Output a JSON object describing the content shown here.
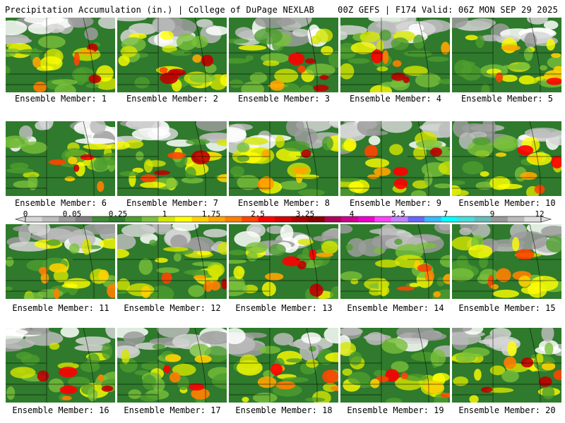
{
  "header": {
    "left": "Precipitation Accumulation (in.) | College of DuPage NEXLAB",
    "right": "00Z GEFS | F174 Valid: 06Z MON SEP 29 2025"
  },
  "colorbar": {
    "tick_labels": [
      "0",
      "0.05",
      "0.25",
      "1",
      "1.75",
      "2.5",
      "3.25",
      "4",
      "5.5",
      "7",
      "9",
      "12"
    ],
    "colors": [
      "#d6d6d6",
      "#bcbcbc",
      "#9c9c9c",
      "#7f7f7f",
      "#3e8b32",
      "#2f7a2c",
      "#4d9e2e",
      "#79c13b",
      "#d6e600",
      "#ffff00",
      "#ffd000",
      "#ffa500",
      "#ff7f00",
      "#ff4500",
      "#ff0000",
      "#d40000",
      "#aa0000",
      "#880000",
      "#b0005a",
      "#d00090",
      "#ee00cc",
      "#ff40ff",
      "#c080ff",
      "#6666ff",
      "#33bbff",
      "#00ffff",
      "#44dddd",
      "#66bbbb",
      "#999999",
      "#bbbbbb",
      "#dddddd"
    ]
  },
  "members": [
    {
      "label": "Ensemble Member: 1"
    },
    {
      "label": "Ensemble Member: 2"
    },
    {
      "label": "Ensemble Member: 3"
    },
    {
      "label": "Ensemble Member: 4"
    },
    {
      "label": "Ensemble Member: 5"
    },
    {
      "label": "Ensemble Member: 6"
    },
    {
      "label": "Ensemble Member: 7"
    },
    {
      "label": "Ensemble Member: 8"
    },
    {
      "label": "Ensemble Member: 9"
    },
    {
      "label": "Ensemble Member: 10"
    },
    {
      "label": "Ensemble Member: 11"
    },
    {
      "label": "Ensemble Member: 12"
    },
    {
      "label": "Ensemble Member: 13"
    },
    {
      "label": "Ensemble Member: 14"
    },
    {
      "label": "Ensemble Member: 15"
    },
    {
      "label": "Ensemble Member: 16"
    },
    {
      "label": "Ensemble Member: 17"
    },
    {
      "label": "Ensemble Member: 18"
    },
    {
      "label": "Ensemble Member: 19"
    },
    {
      "label": "Ensemble Member: 20"
    }
  ]
}
